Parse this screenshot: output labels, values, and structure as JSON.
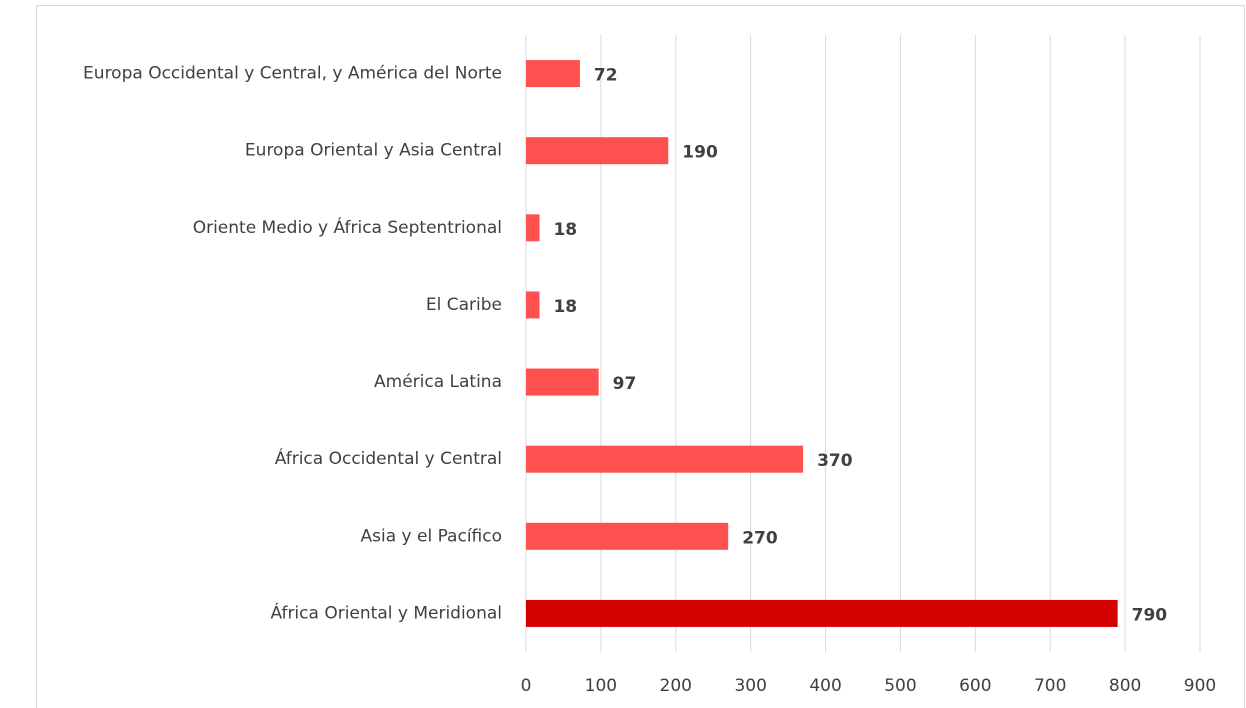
{
  "chart_data": {
    "type": "bar",
    "orientation": "horizontal",
    "categories": [
      "Europa Occidental y Central, y América del Norte",
      "Europa Oriental y Asia Central",
      "Oriente Medio y África Septentrional",
      "El Caribe",
      "América Latina",
      "África Occidental y Central",
      "Asia y el Pacífico",
      "África Oriental y Meridional"
    ],
    "values": [
      72,
      190,
      18,
      18,
      97,
      370,
      270,
      790
    ],
    "colors": [
      "#ff5050",
      "#ff5050",
      "#ff5050",
      "#ff5050",
      "#ff5050",
      "#ff5050",
      "#ff5050",
      "#d40000"
    ],
    "xlim": [
      0,
      900
    ],
    "xticks": [
      0,
      100,
      200,
      300,
      400,
      500,
      600,
      700,
      800,
      900
    ],
    "grid": true
  }
}
